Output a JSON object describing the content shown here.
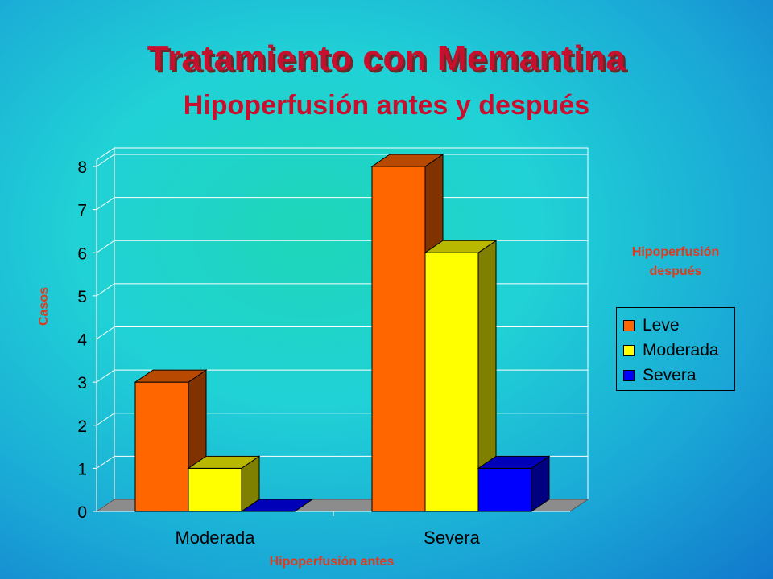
{
  "title": "Tratamiento con Memantina",
  "subtitle": "Hipoperfusión antes y después",
  "chart_data": {
    "type": "bar",
    "xlabel": "Hipoperfusión antes",
    "ylabel": "Casos",
    "ylim": [
      0,
      8
    ],
    "yticks": [
      "0",
      "1",
      "2",
      "3",
      "4",
      "5",
      "6",
      "7",
      "8"
    ],
    "categories": [
      "Moderada",
      "Severa"
    ],
    "legend_title": "Hipoperfusión después",
    "legend_position": "right",
    "grid": true,
    "series": [
      {
        "name": "Leve",
        "color": "#ff6600",
        "values": [
          3,
          8
        ]
      },
      {
        "name": "Moderada",
        "color": "#ffff00",
        "values": [
          1,
          6
        ]
      },
      {
        "name": "Severa",
        "color": "#0000ff",
        "values": [
          0,
          1
        ]
      }
    ]
  }
}
